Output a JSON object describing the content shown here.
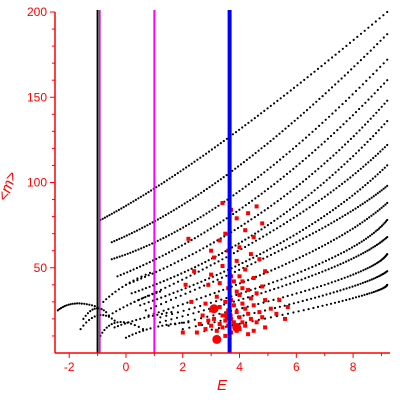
{
  "chart_data": {
    "type": "scatter",
    "title": "",
    "xlabel": "E",
    "ylabel": "<m>",
    "xlim": [
      -2.5,
      9.3
    ],
    "ylim": [
      0,
      200
    ],
    "xticks": [
      -2,
      0,
      2,
      4,
      6,
      8
    ],
    "yticks": [
      50,
      100,
      150,
      200
    ],
    "grid": false,
    "colors": {
      "axis": "#ff0000",
      "points": "#000000",
      "highlight": "#ff0000"
    },
    "vertical_lines": [
      {
        "x": -1.0,
        "color": "#000000",
        "width": 2
      },
      {
        "x": -0.92,
        "color": "#cc00cc",
        "width": 1.5
      },
      {
        "x": 1.0,
        "color": "#ff00ff",
        "width": 2
      },
      {
        "x": 3.65,
        "color": "#0000ff",
        "width": 4
      }
    ],
    "series": [
      {
        "color": "#000000",
        "marker_size": 1.1,
        "bands": [
          {
            "from": [
              -2.4,
              25
            ],
            "via": [
              -1.8,
              29
            ],
            "to": [
              -1.0,
              27
            ],
            "n": 18
          },
          {
            "from": [
              -1.5,
              20
            ],
            "via": [
              -1.1,
              26
            ],
            "to": [
              -0.7,
              24
            ],
            "n": 10
          },
          {
            "from": [
              -1.6,
              14
            ],
            "via": [
              -1.0,
              22
            ],
            "to": [
              -0.4,
              19
            ],
            "n": 12
          },
          {
            "from": [
              -0.9,
              10
            ],
            "via": [
              -0.3,
              18
            ],
            "to": [
              0.6,
              14
            ],
            "n": 14
          },
          {
            "from": [
              -0.9,
              78
            ],
            "via": [
              3.5,
              125
            ],
            "to": [
              9.2,
              200
            ],
            "n": 95
          },
          {
            "from": [
              -0.5,
              65
            ],
            "via": [
              4.0,
              110
            ],
            "to": [
              9.2,
              187
            ],
            "n": 95
          },
          {
            "from": [
              -0.5,
              55
            ],
            "via": [
              4.0,
              95
            ],
            "to": [
              9.2,
              172
            ],
            "n": 90
          },
          {
            "from": [
              -0.3,
              45
            ],
            "via": [
              4.5,
              90
            ],
            "to": [
              9.2,
              160
            ],
            "n": 85
          },
          {
            "from": [
              0.0,
              40
            ],
            "via": [
              5.0,
              85
            ],
            "to": [
              9.2,
              148
            ],
            "n": 80
          },
          {
            "from": [
              0.2,
              35
            ],
            "via": [
              5.0,
              75
            ],
            "to": [
              9.2,
              136
            ],
            "n": 80
          },
          {
            "from": [
              0.3,
              30
            ],
            "via": [
              5.5,
              75
            ],
            "to": [
              9.2,
              122
            ],
            "n": 75
          },
          {
            "from": [
              0.5,
              28
            ],
            "via": [
              5.5,
              65
            ],
            "to": [
              9.2,
              110
            ],
            "n": 75
          },
          {
            "from": [
              0.7,
              25
            ],
            "via": [
              6.0,
              65
            ],
            "to": [
              9.2,
              98
            ],
            "n": 70
          },
          {
            "from": [
              0.8,
              22
            ],
            "via": [
              6.0,
              55
            ],
            "to": [
              9.2,
              88
            ],
            "n": 70
          },
          {
            "from": [
              1.0,
              20
            ],
            "via": [
              6.5,
              50
            ],
            "to": [
              9.2,
              78
            ],
            "n": 65
          },
          {
            "from": [
              1.2,
              18
            ],
            "via": [
              6.5,
              45
            ],
            "to": [
              9.2,
              68
            ],
            "n": 65
          },
          {
            "from": [
              1.5,
              16
            ],
            "via": [
              7.0,
              40
            ],
            "to": [
              9.2,
              58
            ],
            "n": 60
          },
          {
            "from": [
              2.0,
              14
            ],
            "via": [
              7.0,
              34
            ],
            "to": [
              9.2,
              48
            ],
            "n": 55
          },
          {
            "from": [
              2.5,
              12
            ],
            "via": [
              7.5,
              30
            ],
            "to": [
              9.2,
              40
            ],
            "n": 50
          },
          {
            "from": [
              -0.8,
              30
            ],
            "via": [
              0.0,
              40
            ],
            "to": [
              1.0,
              48
            ],
            "n": 14
          },
          {
            "from": [
              -0.6,
              22
            ],
            "via": [
              0.3,
              30
            ],
            "to": [
              1.2,
              36
            ],
            "n": 14
          },
          {
            "from": [
              -0.4,
              15
            ],
            "via": [
              0.5,
              20
            ],
            "to": [
              1.6,
              24
            ],
            "n": 14
          },
          {
            "from": [
              0.0,
              9
            ],
            "via": [
              1.0,
              15
            ],
            "to": [
              2.2,
              18
            ],
            "n": 16
          }
        ]
      },
      {
        "color": "#ff0000",
        "marker": "square",
        "points": [
          [
            3.4,
            88
          ],
          [
            3.7,
            84
          ],
          [
            3.9,
            79
          ],
          [
            4.3,
            82
          ],
          [
            4.6,
            86
          ],
          [
            4.8,
            76
          ],
          [
            4.2,
            72
          ],
          [
            3.5,
            70
          ],
          [
            3.3,
            66
          ],
          [
            4.5,
            68
          ],
          [
            4.0,
            62
          ],
          [
            3.6,
            60
          ],
          [
            4.4,
            58
          ],
          [
            3.1,
            56
          ],
          [
            3.9,
            54
          ],
          [
            4.7,
            55
          ],
          [
            3.4,
            51
          ],
          [
            4.2,
            49
          ],
          [
            4.9,
            48
          ],
          [
            3.0,
            46
          ],
          [
            3.7,
            45
          ],
          [
            4.5,
            44
          ],
          [
            4.1,
            42
          ],
          [
            3.3,
            41
          ],
          [
            2.9,
            40
          ],
          [
            4.8,
            39
          ],
          [
            3.6,
            38
          ],
          [
            4.3,
            37
          ],
          [
            3.9,
            36
          ],
          [
            4.6,
            35
          ],
          [
            4.0,
            34
          ],
          [
            3.2,
            33
          ],
          [
            4.4,
            32
          ],
          [
            3.7,
            31
          ],
          [
            4.9,
            31
          ],
          [
            3.5,
            30
          ],
          [
            4.1,
            29
          ],
          [
            2.8,
            29
          ],
          [
            3.8,
            28
          ],
          [
            4.5,
            28
          ],
          [
            3.3,
            27
          ],
          [
            4.2,
            26
          ],
          [
            5.1,
            26
          ],
          [
            3.0,
            25
          ],
          [
            3.6,
            25
          ],
          [
            4.7,
            24
          ],
          [
            3.9,
            24
          ],
          [
            4.3,
            23
          ],
          [
            5.3,
            23
          ],
          [
            3.4,
            22
          ],
          [
            2.7,
            22
          ],
          [
            4.0,
            21
          ],
          [
            4.8,
            21
          ],
          [
            3.7,
            20
          ],
          [
            3.1,
            20
          ],
          [
            4.4,
            20
          ],
          [
            5.6,
            20
          ],
          [
            3.5,
            19
          ],
          [
            2.9,
            19
          ],
          [
            4.1,
            18
          ],
          [
            3.8,
            18
          ],
          [
            4.6,
            18
          ],
          [
            3.3,
            17
          ],
          [
            2.6,
            17
          ],
          [
            4.2,
            16
          ],
          [
            3.0,
            16
          ],
          [
            3.6,
            16
          ],
          [
            4.9,
            15
          ],
          [
            3.4,
            15
          ],
          [
            4.0,
            14
          ],
          [
            2.8,
            14
          ],
          [
            3.9,
            13
          ],
          [
            3.2,
            13
          ],
          [
            4.5,
            13
          ],
          [
            2.5,
            12
          ],
          [
            3.7,
            12
          ],
          [
            4.3,
            11
          ],
          [
            3.5,
            10
          ],
          [
            2.1,
            40
          ],
          [
            2.3,
            30
          ],
          [
            2.0,
            12
          ],
          [
            2.4,
            48
          ],
          [
            2.2,
            67
          ],
          [
            3.0,
            60
          ],
          [
            5.4,
            31
          ],
          [
            5.7,
            27
          ],
          [
            4.0,
            45
          ],
          [
            3.8,
            42
          ],
          [
            4.1,
            38
          ]
        ],
        "big_points": [
          [
            3.2,
            8
          ],
          [
            3.9,
            15
          ],
          [
            3.6,
            22
          ],
          [
            3.1,
            26
          ]
        ]
      }
    ]
  }
}
